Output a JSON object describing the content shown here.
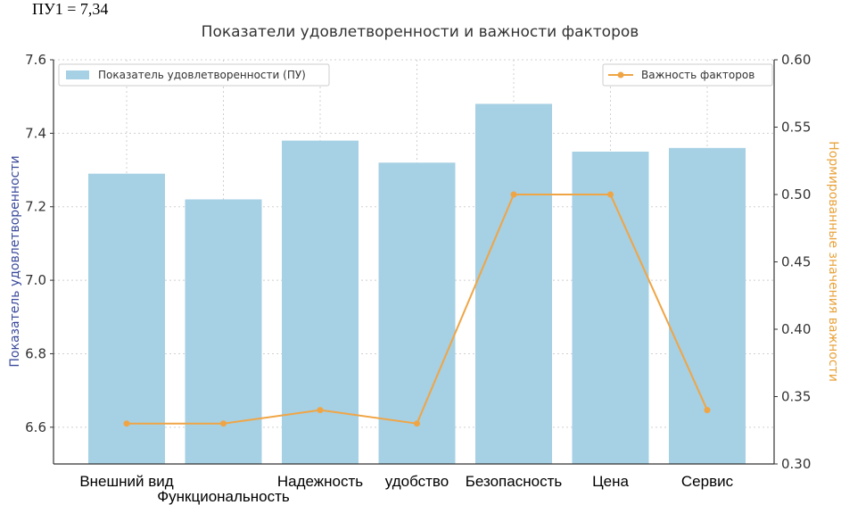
{
  "note": "ПУ1 = 7,34",
  "chart_data": {
    "type": "bar",
    "title": "Показатели удовлетворенности и важности факторов",
    "categories": [
      "Внешний вид",
      "Функциональность",
      "Надежность",
      "удобство",
      "Безопасность",
      "Цена",
      "Сервис"
    ],
    "series": [
      {
        "name": "Показатель удовлетворенности (ПУ)",
        "type": "bar",
        "axis": "left",
        "color": "#a6d0e4",
        "values": [
          7.29,
          7.22,
          7.38,
          7.32,
          7.48,
          7.35,
          7.36
        ]
      },
      {
        "name": "Важность факторов",
        "type": "line",
        "axis": "right",
        "color": "#f0a545",
        "values": [
          0.33,
          0.33,
          0.34,
          0.33,
          0.5,
          0.5,
          0.34
        ]
      }
    ],
    "ylabel": "Показатель удовлетворенности",
    "ylabel_right": "Нормированные значения важности",
    "ylim": [
      6.5,
      7.6
    ],
    "ylim_right": [
      0.3,
      0.6
    ],
    "yticks": [
      "6.6",
      "6.8",
      "7.0",
      "7.2",
      "7.4",
      "7.6"
    ],
    "yticks_right": [
      "0.30",
      "0.35",
      "0.40",
      "0.45",
      "0.50",
      "0.55",
      "0.60"
    ],
    "grid": true,
    "legend_left": "top-left",
    "legend_right": "top-right"
  }
}
